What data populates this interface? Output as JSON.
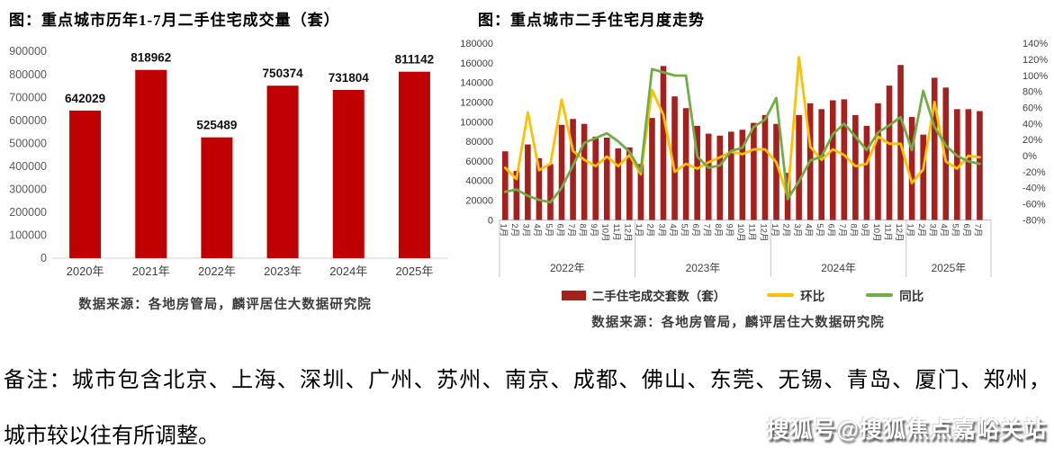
{
  "note": {
    "line1": "备注：城市包含北京、上海、深圳、广州、苏州、南京、成都、佛山、东莞、无锡、青岛、厦门、郑州，",
    "line2": "城市较以往有所调整。"
  },
  "watermark": "搜狐号@搜狐焦点嘉峪关站",
  "right_chart_legend_note": "legend labels come from chart_data.1.series names",
  "chart_data": [
    {
      "type": "bar",
      "title": "图：重点城市历年1-7月二手住宅成交量（套）",
      "categories": [
        "2020年",
        "2021年",
        "2022年",
        "2023年",
        "2024年",
        "2025年"
      ],
      "values": [
        642029,
        818962,
        525489,
        750374,
        731804,
        811142
      ],
      "ylim": [
        0,
        900000
      ],
      "ytick_step": 100000,
      "bar_color": "#C00000",
      "axis_line_color": "#D9D9D9",
      "data_labels": true,
      "grid": false,
      "source": "数据来源：各地房管局，麟评居住大数据研究院"
    },
    {
      "type": "bar+line",
      "title": "图：重点城市二手住宅月度走势",
      "year_groups": [
        {
          "label": "2022年",
          "months": 12
        },
        {
          "label": "2023年",
          "months": 12
        },
        {
          "label": "2024年",
          "months": 12
        },
        {
          "label": "2025年",
          "months": 7
        }
      ],
      "month_suffix": "月",
      "y_left": {
        "min": 0,
        "max": 180000,
        "step": 20000
      },
      "y_right": {
        "min": -80,
        "max": 140,
        "step": 20,
        "suffix": "%"
      },
      "grid": false,
      "separator_color": "#BFBFBF",
      "legend_position": "bottom",
      "series": [
        {
          "name": "二手住宅成交套数（套）",
          "type": "bar",
          "axis": "left",
          "color": "#A6201E",
          "values": [
            70000,
            50000,
            77000,
            63000,
            57000,
            97000,
            103000,
            98000,
            85000,
            84000,
            73000,
            74000,
            57000,
            104000,
            157000,
            126000,
            114000,
            96000,
            88000,
            86000,
            90000,
            92000,
            99000,
            107000,
            98000,
            48000,
            107000,
            119000,
            113000,
            122000,
            123000,
            107000,
            96000,
            119000,
            137000,
            158000,
            105000,
            87000,
            145000,
            135000,
            113000,
            113000,
            111000
          ]
        },
        {
          "name": "环比",
          "type": "line",
          "axis": "right",
          "color": "#FFC000",
          "values": [
            -15,
            -29,
            54,
            -18,
            -10,
            70,
            6,
            -5,
            -13,
            -1,
            -13,
            1,
            -23,
            82,
            51,
            -20,
            -10,
            -16,
            -8,
            -2,
            5,
            2,
            8,
            8,
            -8,
            -51,
            123,
            11,
            -5,
            8,
            1,
            -13,
            -10,
            24,
            15,
            15,
            -34,
            -17,
            67,
            -7,
            -16,
            0,
            -2
          ]
        },
        {
          "name": "同比",
          "type": "line",
          "axis": "right",
          "color": "#70AD47",
          "values": [
            -45,
            -42,
            -50,
            -55,
            -58,
            -40,
            -12,
            16,
            22,
            28,
            18,
            5,
            -19,
            108,
            104,
            100,
            100,
            -1,
            -15,
            -12,
            6,
            10,
            36,
            45,
            72,
            -54,
            -32,
            -6,
            -1,
            27,
            40,
            24,
            7,
            29,
            38,
            48,
            7,
            81,
            36,
            13,
            0,
            -7,
            -10
          ]
        }
      ],
      "source": "数据来源：各地房管局，麟评居住大数据研究院"
    }
  ]
}
